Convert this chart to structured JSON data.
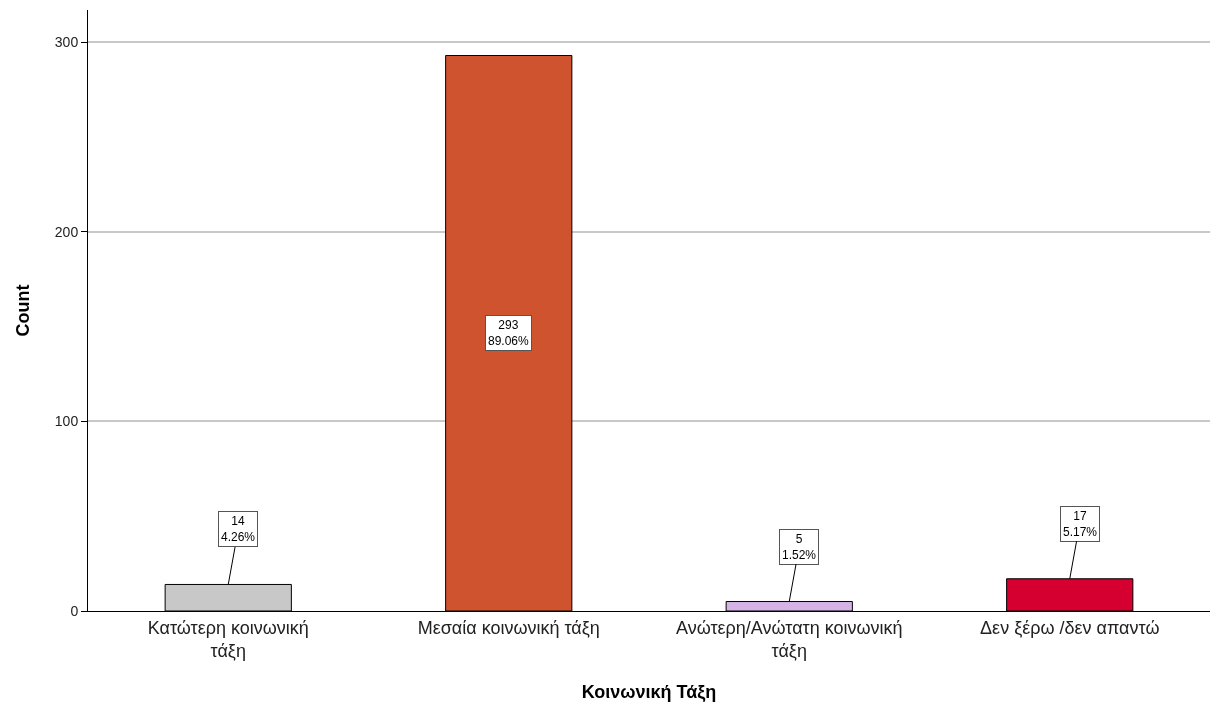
{
  "chart_data": {
    "type": "bar",
    "xlabel": "Κοινωνική Τάξη",
    "ylabel": "Count",
    "categories": [
      "Κατώτερη κοινωνική τάξη",
      "Μεσαία κοινωνική τάξη",
      "Ανώτερη/Ανώτατη κοινωνική τάξη",
      "Δεν ξέρω /δεν απαντώ"
    ],
    "values": [
      14,
      293,
      5,
      17
    ],
    "colors": [
      "#c8c8c8",
      "#d0532f",
      "#d6b3e6",
      "#d5002f"
    ],
    "value_labels": [
      "14\n4.26%",
      "293\n89.06%",
      "5\n1.52%",
      "17\n5.17%"
    ],
    "ylim": [
      0,
      317
    ],
    "yticks": [
      0,
      100,
      200,
      300
    ],
    "grid": "y"
  }
}
